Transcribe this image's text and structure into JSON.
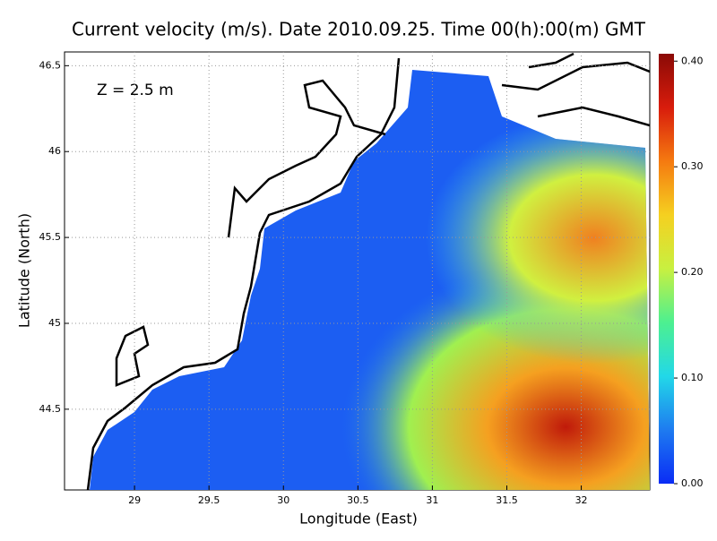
{
  "chart_data": {
    "type": "vector-field-map",
    "title": "Current velocity (m/s). Date 2010.09.25. Time 00(h):00(m) GMT",
    "annotation": "Z = 2.5 m",
    "x_label": "Longitude (East)",
    "y_label": "Latitude (North)",
    "xlim": [
      28.53,
      32.46
    ],
    "xticks": [
      29,
      29.5,
      30,
      30.5,
      31,
      31.5,
      32
    ],
    "ylim": [
      44.03,
      46.58
    ],
    "yticks": [
      44.5,
      45,
      45.5,
      46,
      46.5
    ],
    "clim": [
      0,
      0.407
    ],
    "cticks": [
      {
        "value": 0,
        "label": "0.00"
      },
      {
        "value": 0.1,
        "label": "0.10"
      },
      {
        "value": 0.2,
        "label": "0.20"
      },
      {
        "value": 0.3,
        "label": "0.30"
      },
      {
        "value": 0.4,
        "label": "0.40"
      }
    ],
    "colormap": [
      "#0a2cf5",
      "#1e7bf0",
      "#22d8e8",
      "#4df090",
      "#c8f040",
      "#f5d020",
      "#f57a10",
      "#d81c0c",
      "#8a0a06"
    ]
  }
}
